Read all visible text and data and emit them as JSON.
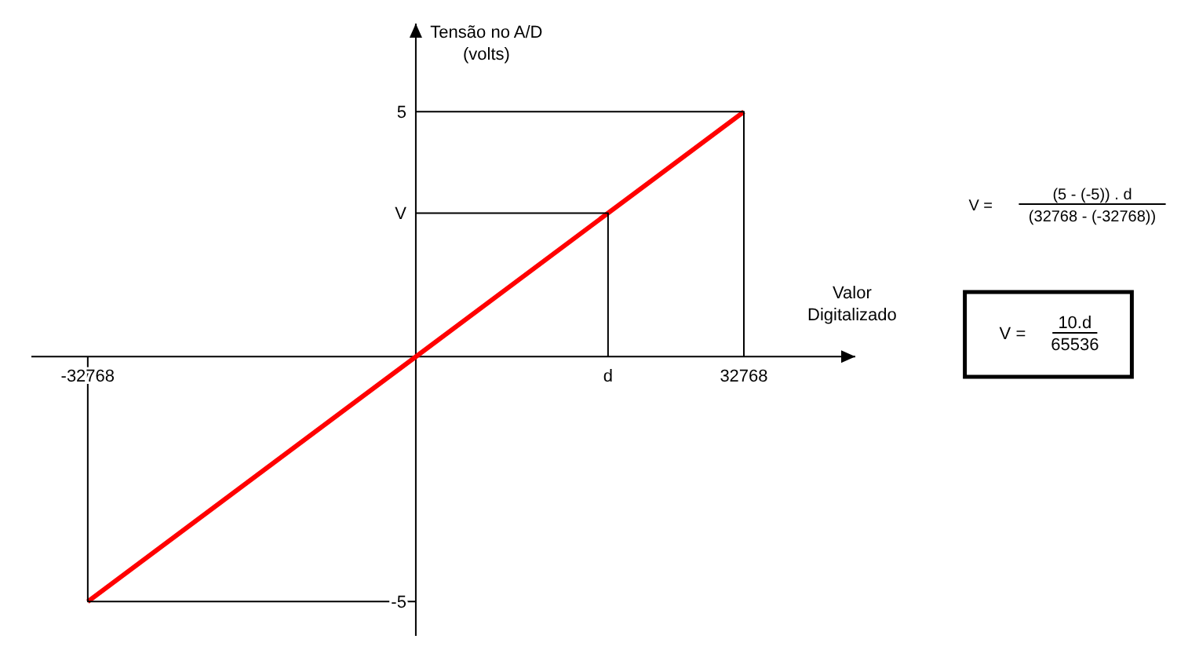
{
  "chart_data": {
    "type": "line",
    "xlabel": "Valor\nDigitalizado",
    "ylabel": "Tensão no A/D\n(volts)",
    "series": [
      {
        "x": [
          -32768,
          32768
        ],
        "values": [
          -5,
          5
        ],
        "color": "#ff0000"
      },
      {
        "x": [
          0,
          32768,
          32768
        ],
        "values": [
          5,
          5,
          0
        ],
        "color": "#000000"
      },
      {
        "x": [
          0,
          19200,
          19200
        ],
        "values": [
          2.93,
          2.93,
          0
        ],
        "color": "#000000"
      },
      {
        "x": [
          0,
          -32768,
          -32768
        ],
        "values": [
          -5,
          -5,
          0
        ],
        "color": "#000000"
      }
    ],
    "xlim": [
      -38400,
      43900
    ],
    "ylim": [
      -5.7,
      6.8
    ],
    "xticks": [
      -32768,
      32768
    ],
    "yticks": [
      -5,
      5
    ],
    "annotations": [
      {
        "text": "d",
        "x": 19200,
        "y": 0
      },
      {
        "text": "V",
        "x": 0,
        "y": 2.93
      },
      "V =",
      "(5 - (-5)) . d",
      "(32768 - (-32768))",
      "V =",
      "10.d",
      "65536"
    ]
  }
}
